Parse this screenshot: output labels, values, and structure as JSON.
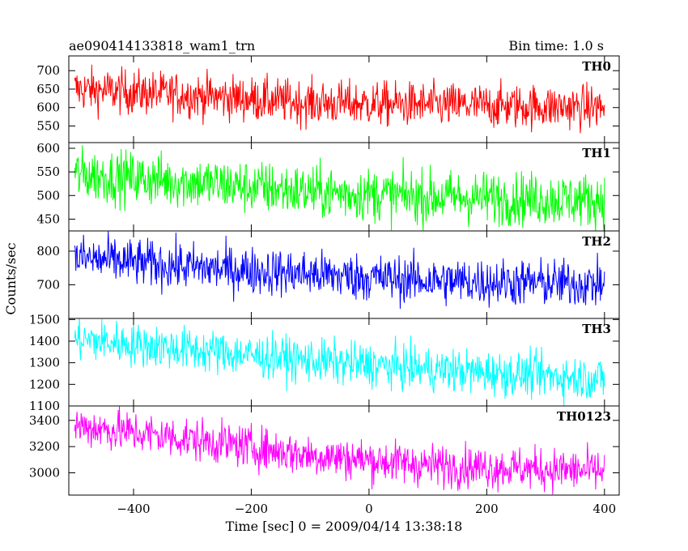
{
  "header": {
    "title": "ae090414133818_wam1_trn",
    "bin_time": "Bin time: 1.0 s"
  },
  "chart_data": {
    "type": "line",
    "xlabel": "Time [sec] 0 = 2009/04/14 13:38:18",
    "ylabel": "Counts/sec",
    "xlim": [
      -510,
      425
    ],
    "x_ticks": [
      -400,
      -200,
      0,
      200,
      400
    ],
    "x_start": -500,
    "x_end": 400,
    "bin_time_s": 1.0,
    "panels": [
      {
        "name": "TH0",
        "color": "#ff0000",
        "ylim": [
          505,
          740
        ],
        "y_ticks": [
          550,
          600,
          650,
          700
        ],
        "trend": [
          [
            -500,
            650
          ],
          [
            -300,
            633
          ],
          [
            -100,
            613
          ],
          [
            100,
            607
          ],
          [
            400,
            600
          ]
        ],
        "noise_amplitude": 30
      },
      {
        "name": "TH1",
        "color": "#00ff00",
        "ylim": [
          425,
          612
        ],
        "y_ticks": [
          450,
          500,
          550,
          600
        ],
        "trend": [
          [
            -500,
            545
          ],
          [
            -300,
            528
          ],
          [
            -100,
            508
          ],
          [
            100,
            497
          ],
          [
            400,
            490
          ]
        ],
        "noise_amplitude": 28
      },
      {
        "name": "TH2",
        "color": "#0000ff",
        "ylim": [
          600,
          860
        ],
        "y_ticks": [
          700,
          800
        ],
        "trend": [
          [
            -500,
            780
          ],
          [
            -300,
            752
          ],
          [
            -100,
            732
          ],
          [
            100,
            712
          ],
          [
            400,
            702
          ]
        ],
        "noise_amplitude": 35
      },
      {
        "name": "TH3",
        "color": "#00ffff",
        "ylim": [
          1100,
          1505
        ],
        "y_ticks": [
          1100,
          1200,
          1300,
          1400,
          1500
        ],
        "trend": [
          [
            -500,
            1410
          ],
          [
            -300,
            1360
          ],
          [
            -100,
            1310
          ],
          [
            100,
            1270
          ],
          [
            400,
            1225
          ]
        ],
        "noise_amplitude": 50
      },
      {
        "name": "TH0123",
        "color": "#ff00ff",
        "ylim": [
          2830,
          3510
        ],
        "y_ticks": [
          3000,
          3200,
          3400
        ],
        "trend": [
          [
            -500,
            3360
          ],
          [
            -300,
            3255
          ],
          [
            -100,
            3135
          ],
          [
            100,
            3060
          ],
          [
            400,
            3010
          ]
        ],
        "noise_amplitude": 80
      }
    ]
  }
}
